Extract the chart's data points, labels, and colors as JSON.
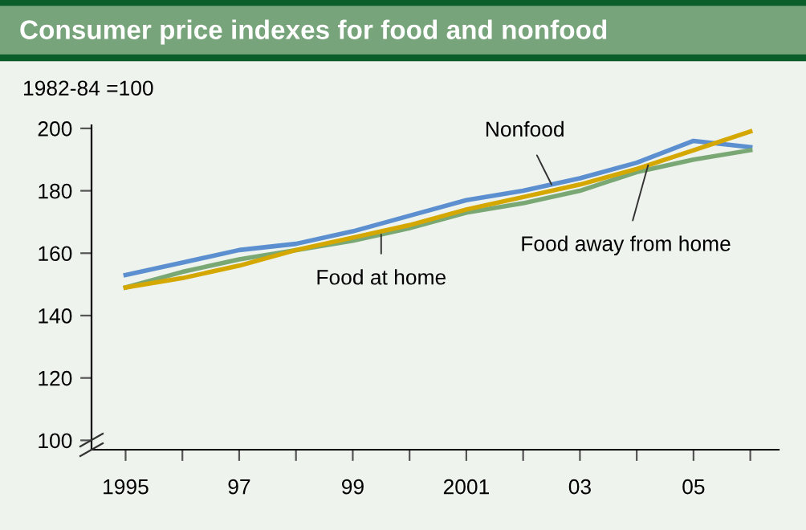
{
  "chart_data": {
    "type": "line",
    "title": "Consumer price indexes for food and nonfood",
    "ylabel": "1982-84 =100",
    "x": [
      1995,
      1996,
      1997,
      1998,
      1999,
      2000,
      2001,
      2002,
      2003,
      2004,
      2005,
      2006
    ],
    "series": [
      {
        "name": "Nonfood",
        "color": "#5b8fcf",
        "values": [
          153,
          157,
          161,
          163,
          167,
          172,
          177,
          180,
          184,
          189,
          196,
          194
        ]
      },
      {
        "name": "Food at home",
        "color": "#7aa874",
        "values": [
          149,
          154,
          158,
          161,
          164,
          168,
          173,
          176,
          180,
          186,
          190,
          193
        ]
      },
      {
        "name": "Food away from home",
        "color": "#d4a800",
        "values": [
          149,
          152,
          156,
          161,
          165,
          169,
          174,
          178,
          182,
          187,
          193,
          199
        ]
      }
    ],
    "xlim": [
      1994.4,
      2006.5
    ],
    "xticks": [
      {
        "value": 1995,
        "label": "1995"
      },
      {
        "value": 1996,
        "label": null
      },
      {
        "value": 1997,
        "label": "97"
      },
      {
        "value": 1998,
        "label": null
      },
      {
        "value": 1999,
        "label": "99"
      },
      {
        "value": 2000,
        "label": null
      },
      {
        "value": 2001,
        "label": "2001"
      },
      {
        "value": 2002,
        "label": null
      },
      {
        "value": 2003,
        "label": "03"
      },
      {
        "value": 2004,
        "label": null
      },
      {
        "value": 2005,
        "label": "05"
      },
      {
        "value": 2006,
        "label": null
      }
    ],
    "ylim": [
      97,
      201
    ],
    "yticks": [
      100,
      120,
      140,
      160,
      180,
      200
    ],
    "grid": false,
    "legend": false,
    "marker": "none",
    "line_style": "solid"
  }
}
